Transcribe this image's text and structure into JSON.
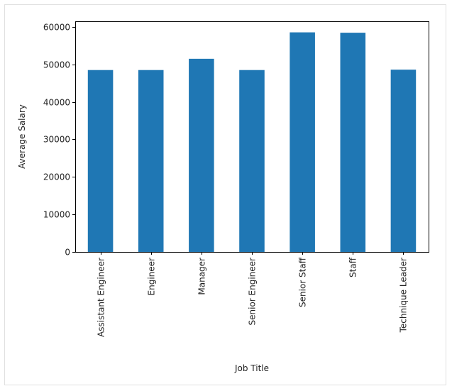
{
  "colors": {
    "bar": "#1f77b4",
    "axis": "#000000",
    "text": "#222222"
  },
  "chart_data": {
    "type": "bar",
    "title": "",
    "xlabel": "Job Title",
    "ylabel": "Average Salary",
    "categories": [
      "Assistant Engineer",
      "Engineer",
      "Manager",
      "Senior Engineer",
      "Senior Staff",
      "Staff",
      "Technique Leader"
    ],
    "values": [
      48500,
      48500,
      51500,
      48500,
      58550,
      58450,
      48600
    ],
    "ylim": [
      0,
      61500
    ],
    "yticks": [
      0,
      10000,
      20000,
      30000,
      40000,
      50000,
      60000
    ],
    "ytick_labels": [
      "0",
      "10000",
      "20000",
      "30000",
      "40000",
      "50000",
      "60000"
    ],
    "grid": false,
    "legend": false
  }
}
